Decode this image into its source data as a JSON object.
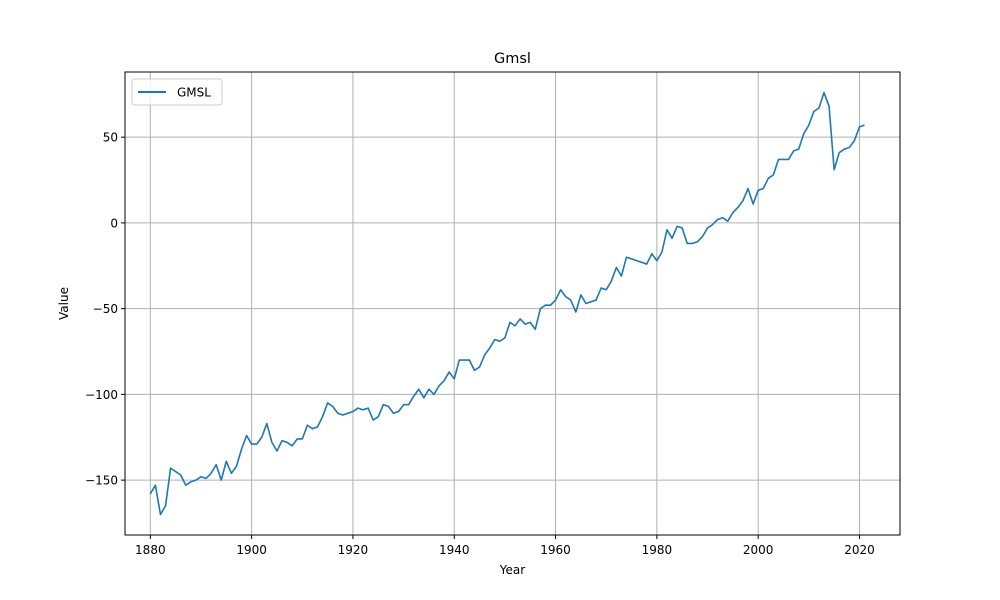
{
  "chart_data": {
    "type": "line",
    "title": "Gmsl",
    "xlabel": "Year",
    "ylabel": "Value",
    "xlim": [
      1875,
      2028
    ],
    "ylim": [
      -182,
      88
    ],
    "x_ticks": [
      1880,
      1900,
      1920,
      1940,
      1960,
      1980,
      2000,
      2020
    ],
    "y_ticks": [
      -150,
      -100,
      -50,
      0,
      50
    ],
    "y_tick_labels": [
      "−150",
      "−100",
      "−50",
      "0",
      "50"
    ],
    "grid": true,
    "legend_position": "top-left",
    "series": [
      {
        "name": "GMSL",
        "color": "#1f77b4",
        "x": [
          1880,
          1881,
          1882,
          1883,
          1884,
          1885,
          1886,
          1887,
          1888,
          1889,
          1890,
          1891,
          1892,
          1893,
          1894,
          1895,
          1896,
          1897,
          1898,
          1899,
          1900,
          1901,
          1902,
          1903,
          1904,
          1905,
          1906,
          1907,
          1908,
          1909,
          1910,
          1911,
          1912,
          1913,
          1914,
          1915,
          1916,
          1917,
          1918,
          1919,
          1920,
          1921,
          1922,
          1923,
          1924,
          1925,
          1926,
          1927,
          1928,
          1929,
          1930,
          1931,
          1932,
          1933,
          1934,
          1935,
          1936,
          1937,
          1938,
          1939,
          1940,
          1941,
          1942,
          1943,
          1944,
          1945,
          1946,
          1947,
          1948,
          1949,
          1950,
          1951,
          1952,
          1953,
          1954,
          1955,
          1956,
          1957,
          1958,
          1959,
          1960,
          1961,
          1962,
          1963,
          1964,
          1965,
          1966,
          1967,
          1968,
          1969,
          1970,
          1971,
          1972,
          1973,
          1974,
          1975,
          1976,
          1977,
          1978,
          1979,
          1980,
          1981,
          1982,
          1983,
          1984,
          1985,
          1986,
          1987,
          1988,
          1989,
          1990,
          1991,
          1992,
          1993,
          1994,
          1995,
          1996,
          1997,
          1998,
          1999,
          2000,
          2001,
          2002,
          2003,
          2004,
          2005,
          2006,
          2007,
          2008,
          2009,
          2010,
          2011,
          2012,
          2013,
          2014,
          2015,
          2016,
          2017,
          2018,
          2019,
          2020,
          2021
        ],
        "values": [
          -158,
          -153,
          -170,
          -165,
          -143,
          -145,
          -147,
          -153,
          -151,
          -150,
          -148,
          -149,
          -146,
          -141,
          -150,
          -139,
          -146,
          -142,
          -132,
          -124,
          -129,
          -129,
          -125,
          -117,
          -128,
          -133,
          -127,
          -128,
          -130,
          -126,
          -126,
          -118,
          -120,
          -119,
          -113,
          -105,
          -107,
          -111,
          -112,
          -111,
          -110,
          -108,
          -109,
          -108,
          -115,
          -113,
          -106,
          -107,
          -111,
          -110,
          -106,
          -106,
          -101,
          -97,
          -102,
          -97,
          -100,
          -95,
          -92,
          -87,
          -91,
          -80,
          -80,
          -80,
          -86,
          -84,
          -77,
          -73,
          -68,
          -69,
          -67,
          -58,
          -60,
          -56,
          -59,
          -58,
          -62,
          -50,
          -48,
          -48,
          -45,
          -39,
          -43,
          -45,
          -52,
          -42,
          -47,
          -46,
          -45,
          -38,
          -39,
          -34,
          -26,
          -31,
          -20,
          -21,
          -22,
          -23,
          -24,
          -18,
          -22,
          -17,
          -4,
          -9,
          -2,
          -3,
          -12,
          -12,
          -11,
          -8,
          -3,
          -1,
          2,
          3,
          1,
          6,
          9,
          13,
          20,
          11,
          19,
          20,
          26,
          28,
          37,
          37,
          37,
          42,
          43,
          52,
          57,
          65,
          67,
          76,
          68,
          31,
          41,
          43,
          44,
          48,
          56,
          57
        ]
      }
    ]
  }
}
